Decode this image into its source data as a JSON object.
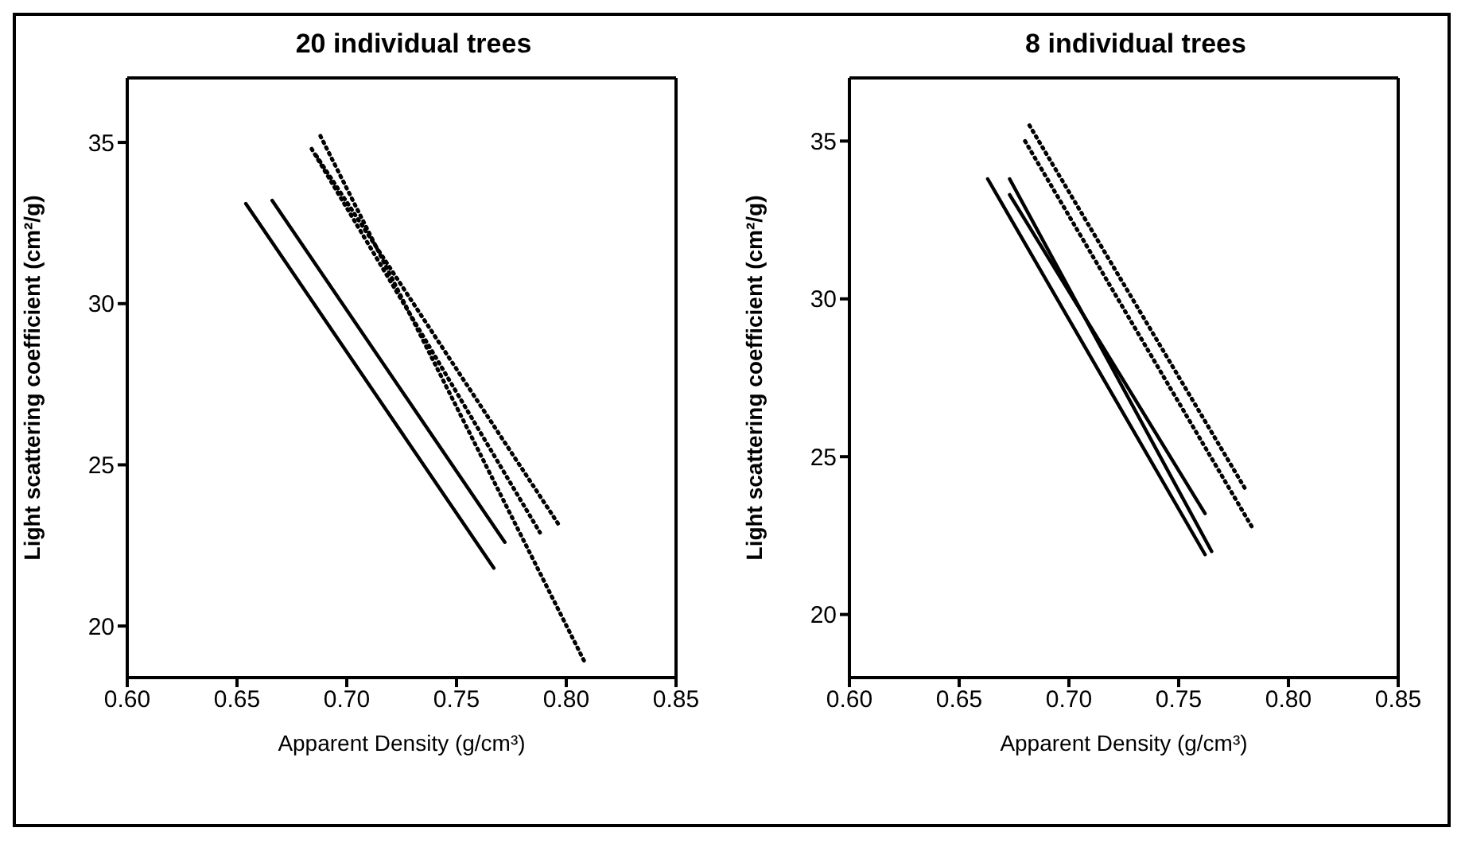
{
  "chart_data": [
    {
      "type": "line",
      "title": "20 individual trees",
      "xlabel": "Apparent Density (g/cm³)",
      "ylabel": "Light scattering coefficient (cm²/g)",
      "xlim": [
        0.6,
        0.85
      ],
      "ylim": [
        18.4,
        37
      ],
      "xticks": [
        {
          "value": 0.6,
          "label": "0.60"
        },
        {
          "value": 0.65,
          "label": "0.65"
        },
        {
          "value": 0.7,
          "label": "0.70"
        },
        {
          "value": 0.75,
          "label": "0.75"
        },
        {
          "value": 0.8,
          "label": "0.80"
        },
        {
          "value": 0.85,
          "label": "0.85"
        }
      ],
      "yticks": [
        20,
        25,
        30,
        35
      ],
      "grid": false,
      "legend": false,
      "marker": "none",
      "series": [
        {
          "color": "#000000",
          "line_style": "solid",
          "x": [
            0.654,
            0.767
          ],
          "values": [
            33.1,
            21.8
          ]
        },
        {
          "color": "#000000",
          "line_style": "solid",
          "x": [
            0.666,
            0.772
          ],
          "values": [
            33.2,
            22.6
          ]
        },
        {
          "color": "#000000",
          "line_style": "dotted",
          "x": [
            0.688,
            0.809
          ],
          "values": [
            35.2,
            18.8
          ]
        },
        {
          "color": "#000000",
          "line_style": "dotted",
          "x": [
            0.684,
            0.788
          ],
          "values": [
            34.8,
            22.9
          ]
        },
        {
          "color": "#000000",
          "line_style": "dotted",
          "x": [
            0.686,
            0.797
          ],
          "values": [
            34.6,
            23.1
          ]
        }
      ]
    },
    {
      "type": "line",
      "title": "8 individual trees",
      "xlabel": "Apparent Density (g/cm³)",
      "ylabel": "Light scattering coefficient (cm²/g)",
      "xlim": [
        0.6,
        0.85
      ],
      "ylim": [
        18,
        37
      ],
      "xticks": [
        {
          "value": 0.6,
          "label": "0.60"
        },
        {
          "value": 0.65,
          "label": "0.65"
        },
        {
          "value": 0.7,
          "label": "0.70"
        },
        {
          "value": 0.75,
          "label": "0.75"
        },
        {
          "value": 0.8,
          "label": "0.80"
        },
        {
          "value": 0.85,
          "label": "0.85"
        }
      ],
      "yticks": [
        20,
        25,
        30,
        35
      ],
      "grid": false,
      "legend": false,
      "marker": "none",
      "series": [
        {
          "color": "#000000",
          "line_style": "solid",
          "x": [
            0.663,
            0.762
          ],
          "values": [
            33.8,
            21.9
          ]
        },
        {
          "color": "#000000",
          "line_style": "solid",
          "x": [
            0.673,
            0.765
          ],
          "values": [
            33.8,
            22.0
          ]
        },
        {
          "color": "#000000",
          "line_style": "solid",
          "x": [
            0.673,
            0.762
          ],
          "values": [
            33.3,
            23.2
          ]
        },
        {
          "color": "#000000",
          "line_style": "dotted",
          "x": [
            0.682,
            0.781
          ],
          "values": [
            35.5,
            23.9
          ]
        },
        {
          "color": "#000000",
          "line_style": "dotted",
          "x": [
            0.68,
            0.784
          ],
          "values": [
            35.0,
            22.7
          ]
        }
      ]
    }
  ]
}
